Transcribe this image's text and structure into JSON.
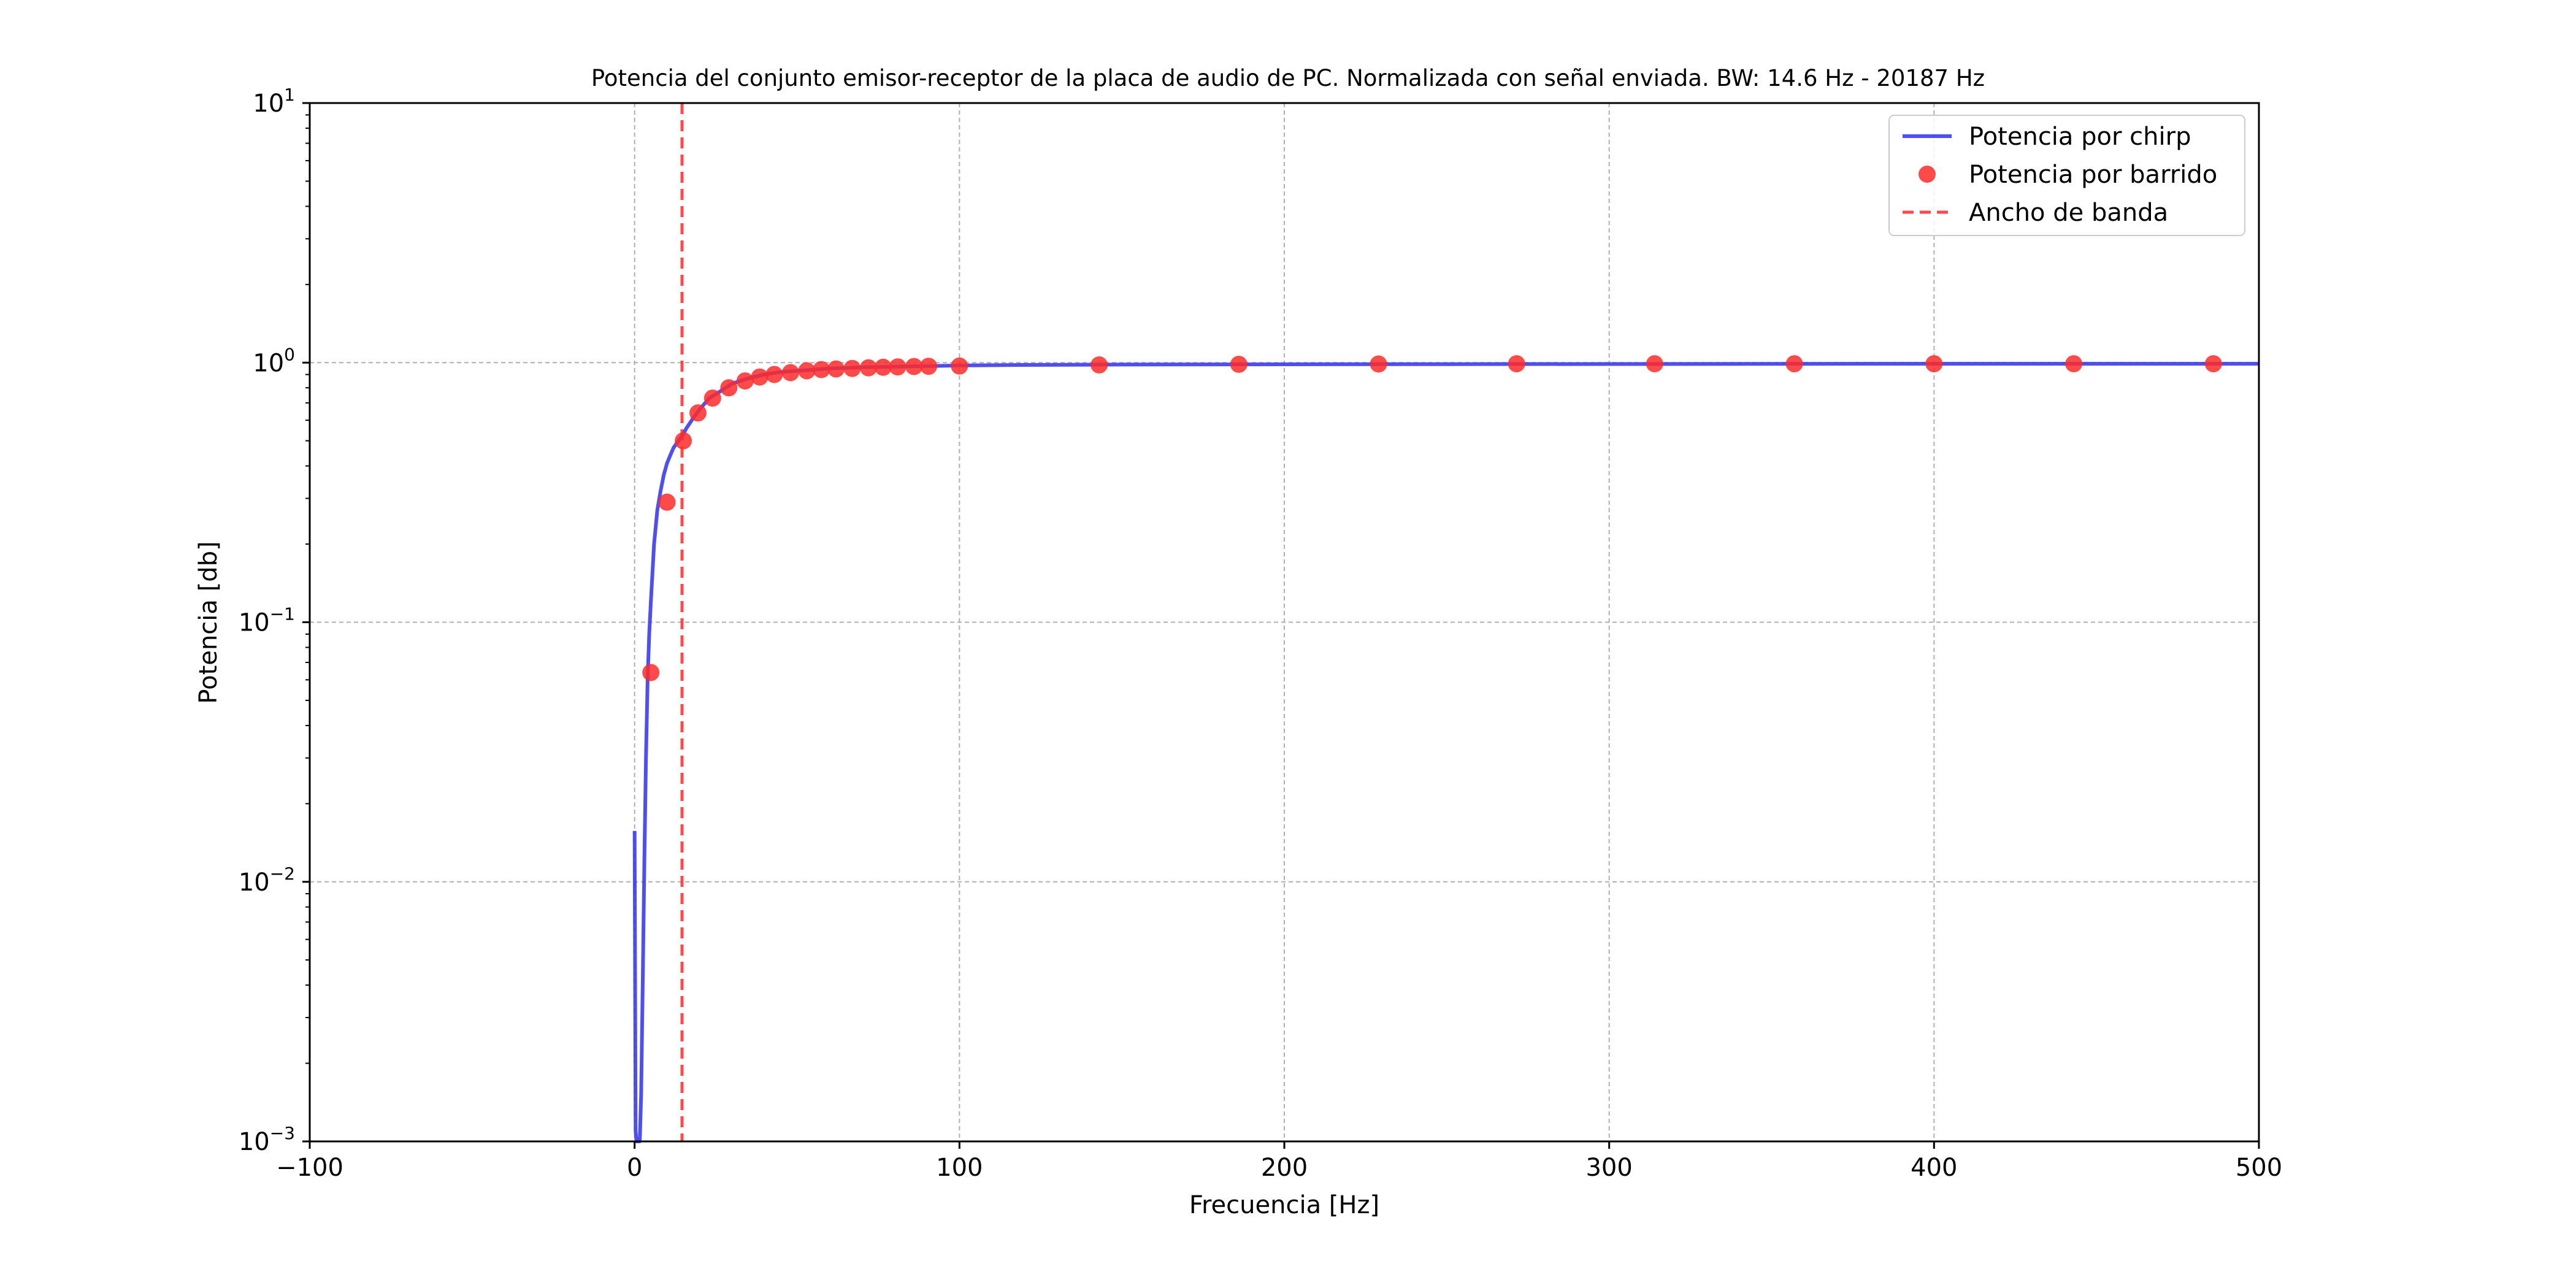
{
  "chart_data": {
    "type": "line",
    "title": "Potencia del conjunto emisor-receptor de la placa de audio de PC. Normalizada con señal enviada. BW: 14.6 Hz - 20187 Hz",
    "xlabel": "Frecuencia [Hz]",
    "ylabel": "Potencia [db]",
    "xlim": [
      -100,
      500
    ],
    "ylim": [
      0.001,
      10
    ],
    "yscale": "log",
    "grid": true,
    "legend_position": "top-right",
    "x_ticks": [
      {
        "value": -100,
        "label": "−100"
      },
      {
        "value": 0,
        "label": "0"
      },
      {
        "value": 100,
        "label": "100"
      },
      {
        "value": 200,
        "label": "200"
      },
      {
        "value": 300,
        "label": "300"
      },
      {
        "value": 400,
        "label": "400"
      },
      {
        "value": 500,
        "label": "500"
      }
    ],
    "y_ticks": [
      {
        "value": 0.001,
        "base": "10",
        "exp": "−3"
      },
      {
        "value": 0.01,
        "base": "10",
        "exp": "−2"
      },
      {
        "value": 0.1,
        "base": "10",
        "exp": "−1"
      },
      {
        "value": 1,
        "base": "10",
        "exp": "0"
      },
      {
        "value": 10,
        "base": "10",
        "exp": "1"
      }
    ],
    "series": [
      {
        "name": "Potencia por chirp",
        "type": "line",
        "color": "#3b3bf0",
        "x": [
          0.0,
          0.3,
          0.6,
          1.0,
          1.3,
          1.6,
          2.0,
          2.5,
          3.0,
          3.5,
          4.0,
          4.5,
          5.0,
          6.0,
          7.0,
          8.0,
          9.0,
          10.0,
          11.0,
          12.0,
          13.0,
          14.6,
          16.0,
          18.0,
          20.0,
          23.0,
          26.0,
          30.0,
          35.0,
          40.0,
          45.0,
          50.0,
          60.0,
          70.0,
          80.0,
          90.0,
          100.0,
          120.0,
          150.0,
          200.0,
          250.0,
          300.0,
          350.0,
          400.0,
          450.0,
          500.0
        ],
        "y": [
          0.0157,
          0.0011,
          0.001,
          0.001,
          0.001,
          0.001,
          0.0015,
          0.004,
          0.012,
          0.03,
          0.06,
          0.09,
          0.12,
          0.2,
          0.27,
          0.32,
          0.37,
          0.41,
          0.44,
          0.47,
          0.49,
          0.52,
          0.56,
          0.61,
          0.66,
          0.73,
          0.77,
          0.83,
          0.87,
          0.9,
          0.92,
          0.93,
          0.95,
          0.96,
          0.965,
          0.97,
          0.975,
          0.98,
          0.983,
          0.985,
          0.987,
          0.988,
          0.989,
          0.99,
          0.99,
          0.99
        ]
      },
      {
        "name": "Potencia por barrido",
        "type": "scatter",
        "color": "#ff2a2a",
        "x": [
          5,
          10,
          15,
          19.5,
          24,
          29,
          34,
          38.5,
          43,
          48,
          53,
          57.5,
          62,
          67,
          72,
          76.5,
          81,
          86,
          90.5,
          100,
          143,
          186,
          229,
          271.5,
          314,
          357,
          400,
          443,
          486
        ],
        "y": [
          0.064,
          0.29,
          0.5,
          0.64,
          0.73,
          0.8,
          0.85,
          0.88,
          0.9,
          0.915,
          0.93,
          0.94,
          0.945,
          0.95,
          0.955,
          0.96,
          0.963,
          0.966,
          0.968,
          0.97,
          0.98,
          0.985,
          0.988,
          0.99,
          0.99,
          0.99,
          0.99,
          0.99,
          0.99
        ]
      },
      {
        "name": "Ancho de banda",
        "type": "vline",
        "color": "#ff2a2a",
        "x": 14.6
      }
    ]
  }
}
